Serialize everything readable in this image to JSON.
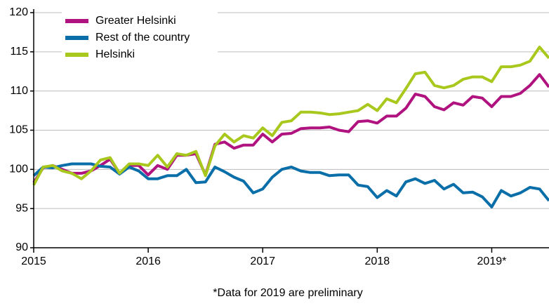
{
  "chart_data": {
    "type": "line",
    "note": "*Data for 2019 are preliminary",
    "x": [
      2015,
      2015.083,
      2015.167,
      2015.25,
      2015.333,
      2015.417,
      2015.5,
      2015.583,
      2015.667,
      2015.75,
      2015.833,
      2015.917,
      2016,
      2016.083,
      2016.167,
      2016.25,
      2016.333,
      2016.417,
      2016.5,
      2016.583,
      2016.667,
      2016.75,
      2016.833,
      2016.917,
      2017,
      2017.083,
      2017.167,
      2017.25,
      2017.333,
      2017.417,
      2017.5,
      2017.583,
      2017.667,
      2017.75,
      2017.833,
      2017.917,
      2018,
      2018.083,
      2018.167,
      2018.25,
      2018.333,
      2018.417,
      2018.5,
      2018.583,
      2018.667,
      2018.75,
      2018.833,
      2018.917,
      2019,
      2019.083,
      2019.167,
      2019.25,
      2019.333,
      2019.417,
      2019.5
    ],
    "series": [
      {
        "name": "Greater Helsinki",
        "color": "#b0137f",
        "values": [
          98.3,
          100.2,
          100.5,
          100,
          99.5,
          99.5,
          99.8,
          100.5,
          101.3,
          99.5,
          100.5,
          100.5,
          99.3,
          100.5,
          100,
          101.8,
          101.8,
          102,
          99.3,
          103.2,
          103.5,
          102.7,
          103.1,
          103.1,
          104.5,
          103.5,
          104.5,
          104.6,
          105.2,
          105.3,
          105.3,
          105.4,
          105,
          104.8,
          106.1,
          106.2,
          105.9,
          106.8,
          106.8,
          107.8,
          109.6,
          109.3,
          108,
          107.6,
          108.5,
          108.2,
          109.3,
          109.1,
          108,
          109.3,
          109.3,
          109.7,
          110.7,
          112.1,
          110.5
        ]
      },
      {
        "name": "Rest of the country",
        "color": "#0a6ea8",
        "values": [
          99.2,
          100.3,
          100.2,
          100.5,
          100.7,
          100.7,
          100.7,
          100.4,
          100.3,
          99.4,
          100.3,
          99.8,
          98.8,
          98.8,
          99.2,
          99.2,
          100,
          98.3,
          98.4,
          100.3,
          99.7,
          99,
          98.5,
          97,
          97.5,
          99,
          100,
          100.3,
          99.8,
          99.6,
          99.6,
          99.2,
          99.3,
          99.3,
          98,
          97.8,
          96.4,
          97.3,
          96.6,
          98.4,
          98.8,
          98.2,
          98.6,
          97.5,
          98.1,
          97,
          97.1,
          96.5,
          95.2,
          97.3,
          96.6,
          97,
          97.7,
          97.5,
          96
        ]
      },
      {
        "name": "Helsinki",
        "color": "#a8c81e",
        "values": [
          98,
          100.3,
          100.5,
          99.8,
          99.5,
          98.8,
          99.8,
          101.2,
          101.5,
          99.5,
          100.7,
          100.7,
          100.5,
          101.8,
          100.3,
          102,
          101.8,
          102.3,
          99.2,
          103,
          104.5,
          103.5,
          104.3,
          104,
          105.3,
          104.3,
          106,
          106.2,
          107.3,
          107.3,
          107.2,
          107,
          107.1,
          107.3,
          107.5,
          108.3,
          107.5,
          109,
          108.5,
          110.3,
          112.2,
          112.4,
          110.7,
          110.4,
          110.7,
          111.5,
          111.8,
          111.8,
          111.2,
          113.1,
          113.1,
          113.3,
          113.8,
          115.6,
          114.2
        ]
      }
    ],
    "xlim": [
      2015,
      2019.5
    ],
    "xticks": [
      2015,
      2016,
      2017,
      2018,
      {
        "value": 2019,
        "label": "2019*"
      }
    ],
    "ylim": [
      90,
      120
    ],
    "yticks": [
      90,
      95,
      100,
      105,
      110,
      115,
      120
    ],
    "grid": true
  }
}
